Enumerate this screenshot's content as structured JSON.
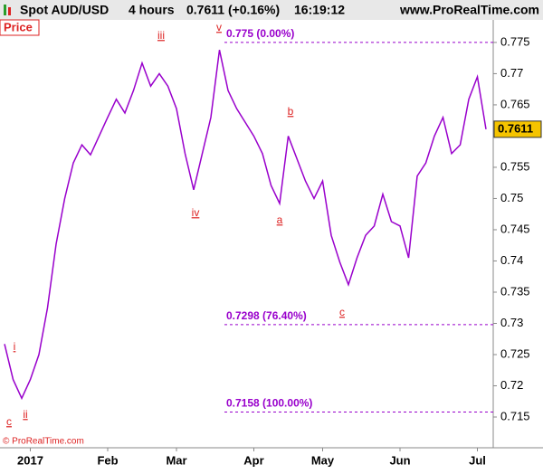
{
  "header": {
    "instrument": "Spot AUD/USD",
    "timeframe": "4 hours",
    "quote": "0.7611 (+0.16%)",
    "time": "16:19:12",
    "site": "www.ProRealTime.com"
  },
  "copyright": "© ProRealTime.com",
  "chart_data": {
    "type": "line",
    "categories": [
      null,
      null,
      null,
      "2017",
      null,
      null,
      null,
      null,
      null,
      null,
      null,
      null,
      "Feb",
      null,
      null,
      null,
      null,
      null,
      null,
      null,
      "Mar",
      null,
      null,
      null,
      null,
      null,
      null,
      null,
      null,
      "Apr",
      null,
      null,
      null,
      null,
      null,
      null,
      null,
      "May",
      null,
      null,
      null,
      null,
      null,
      null,
      null,
      null,
      "Jun",
      null,
      null,
      null,
      null,
      null,
      null,
      null,
      null,
      "Jul",
      null
    ],
    "series": [
      {
        "name": "Price",
        "color": "#9900cc",
        "values": [
          0.7267,
          0.721,
          0.718,
          0.721,
          0.725,
          0.7325,
          0.7427,
          0.75,
          0.7557,
          0.7586,
          0.757,
          0.76,
          0.763,
          0.7659,
          0.7637,
          0.7673,
          0.7717,
          0.768,
          0.77,
          0.768,
          0.7644,
          0.7572,
          0.7514,
          0.7572,
          0.763,
          0.7738,
          0.7673,
          0.7644,
          0.7622,
          0.76,
          0.7572,
          0.7521,
          0.7492,
          0.76,
          0.7564,
          0.7528,
          0.75,
          0.7528,
          0.7441,
          0.7398,
          0.7362,
          0.7405,
          0.7441,
          0.7456,
          0.7507,
          0.7463,
          0.7456,
          0.7405,
          0.7536,
          0.7557,
          0.76,
          0.763,
          0.7572,
          0.7586,
          0.7659,
          0.7695,
          0.7611
        ],
        "value_labels": [
          null,
          null,
          null,
          null,
          null,
          null,
          null,
          null,
          null,
          null,
          null,
          null,
          null,
          null,
          null,
          null,
          null,
          null,
          null,
          null,
          null,
          null,
          null,
          null,
          null,
          null,
          null,
          null,
          null,
          null,
          null,
          null,
          null,
          null,
          null,
          null,
          null,
          null,
          null,
          null,
          null,
          null,
          null,
          null,
          null,
          null,
          null,
          null,
          null,
          null,
          null,
          null,
          null,
          null,
          null,
          null,
          "0.7611"
        ]
      }
    ],
    "ylim": [
      0.7108,
      0.7789
    ],
    "yticks": [
      0.715,
      0.72,
      0.725,
      0.73,
      0.735,
      0.74,
      0.745,
      0.75,
      0.755,
      0.765,
      0.77,
      0.775
    ],
    "levels": [
      {
        "value": 0.775,
        "label": "0.775 (0.00%)"
      },
      {
        "value": 0.7298,
        "label": "0.7298 (76.40%)"
      },
      {
        "value": 0.7158,
        "label": "0.7158 (100.00%)"
      }
    ],
    "wave_labels": [
      "c",
      "i",
      "ii",
      "iii",
      "iv",
      "v",
      "a",
      "b",
      "c"
    ]
  }
}
